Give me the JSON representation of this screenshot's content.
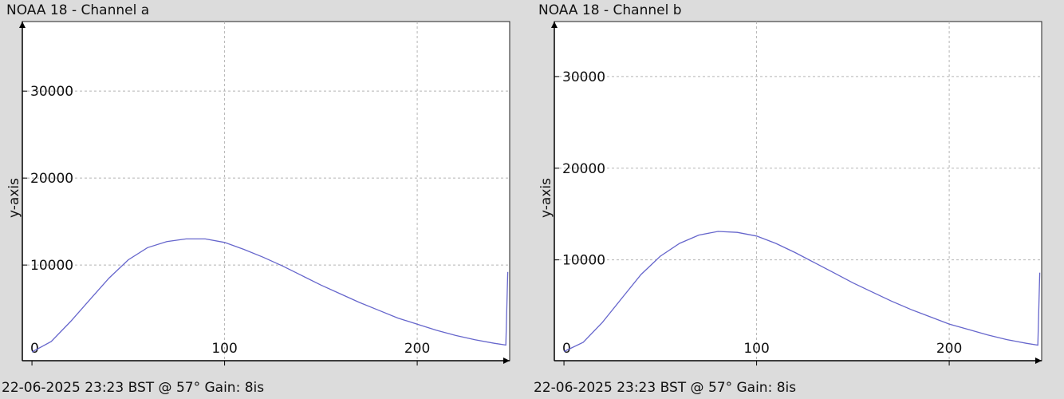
{
  "chart_data": [
    {
      "type": "line",
      "title": "NOAA 18 - Channel a",
      "xlabel": "",
      "ylabel": "y-axis",
      "footer": "22-06-2025 23:23 BST @ 57° Gain: 8is",
      "xlim": [
        -5,
        248
      ],
      "ylim": [
        -1000,
        38000
      ],
      "xticks": [
        0,
        100,
        200
      ],
      "yticks": [
        10000,
        20000,
        30000
      ],
      "grid": true,
      "series": [
        {
          "color": "#6666cc",
          "x": [
            0,
            10,
            20,
            30,
            40,
            50,
            60,
            70,
            80,
            90,
            100,
            110,
            120,
            130,
            140,
            150,
            160,
            170,
            180,
            190,
            200,
            210,
            220,
            230,
            240,
            246,
            247
          ],
          "y": [
            0,
            1200,
            3500,
            6000,
            8500,
            10600,
            12000,
            12700,
            13000,
            13000,
            12600,
            11800,
            10900,
            9900,
            8800,
            7700,
            6700,
            5700,
            4800,
            3900,
            3200,
            2500,
            1900,
            1400,
            1000,
            800,
            9200
          ]
        }
      ]
    },
    {
      "type": "line",
      "title": "NOAA 18 - Channel b",
      "xlabel": "",
      "ylabel": "y-axis",
      "footer": "22-06-2025 23:23 BST @ 57° Gain: 8is",
      "xlim": [
        -5,
        248
      ],
      "ylim": [
        -1000,
        36000
      ],
      "xticks": [
        0,
        100,
        200
      ],
      "yticks": [
        10000,
        20000,
        30000
      ],
      "grid": true,
      "series": [
        {
          "color": "#6666cc",
          "x": [
            0,
            10,
            20,
            30,
            40,
            50,
            60,
            70,
            80,
            90,
            100,
            110,
            120,
            130,
            140,
            150,
            160,
            170,
            180,
            190,
            200,
            210,
            220,
            230,
            240,
            246,
            247
          ],
          "y": [
            0,
            1000,
            3200,
            5800,
            8400,
            10400,
            11800,
            12700,
            13100,
            13000,
            12600,
            11800,
            10800,
            9700,
            8600,
            7500,
            6500,
            5500,
            4600,
            3800,
            3000,
            2400,
            1800,
            1300,
            900,
            700,
            8600
          ]
        }
      ]
    }
  ]
}
